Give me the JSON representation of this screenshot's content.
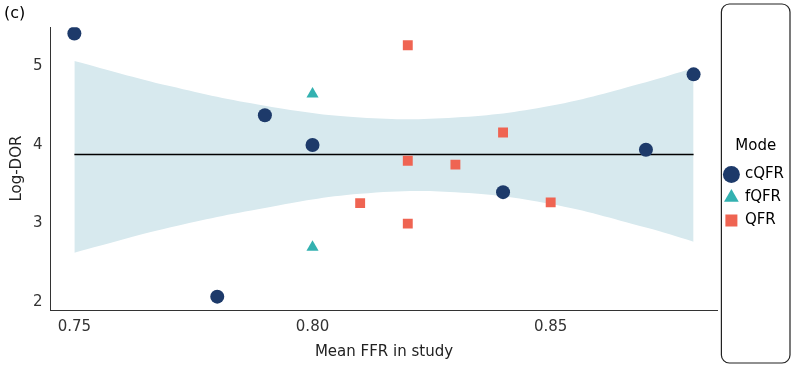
{
  "chart_data": {
    "type": "scatter",
    "title": "(c)",
    "x_label": "Mean FFR in study",
    "y_label": "Log-DOR",
    "legend_title": "Mode",
    "legend": "right",
    "grid": false,
    "xlim": [
      0.745,
      0.885
    ],
    "xticks": [
      0.75,
      {
        "value": 0.8,
        "label": "0.80"
      },
      0.85
    ],
    "ylim": [
      1.9,
      5.5
    ],
    "yticks": [
      2,
      3,
      4,
      5
    ],
    "series": [
      {
        "name": "cQFR",
        "color": "#1d3a6a",
        "marker": "circle",
        "x": [
          0.75,
          0.78,
          0.79,
          0.8,
          0.84,
          0.87,
          0.88
        ],
        "values": [
          5.42,
          2.07,
          4.38,
          4.0,
          3.4,
          3.94,
          4.9
        ]
      },
      {
        "name": "fQFR",
        "color": "#33b1b0",
        "marker": "triangle",
        "x": [
          0.8,
          0.8
        ],
        "values": [
          4.65,
          2.7
        ]
      },
      {
        "name": "QFR",
        "color": "#ef6452",
        "marker": "square",
        "x": [
          0.82,
          0.84,
          0.82,
          0.83,
          0.81,
          0.82,
          0.85
        ],
        "values": [
          5.27,
          4.16,
          3.8,
          3.75,
          3.26,
          3.0,
          3.27
        ]
      }
    ],
    "fit_line": {
      "color": "#000000",
      "x": [
        0.75,
        0.88
      ],
      "values": [
        3.88,
        3.88
      ]
    },
    "confidence_band": {
      "color": "#d7e9ee",
      "x": [
        0.75,
        0.77,
        0.79,
        0.81,
        0.83,
        0.85,
        0.87,
        0.88
      ],
      "lower": [
        2.63,
        2.95,
        3.2,
        3.38,
        3.4,
        3.25,
        2.95,
        2.77
      ],
      "upper": [
        5.07,
        4.75,
        4.5,
        4.35,
        4.35,
        4.5,
        4.8,
        4.98
      ]
    }
  }
}
